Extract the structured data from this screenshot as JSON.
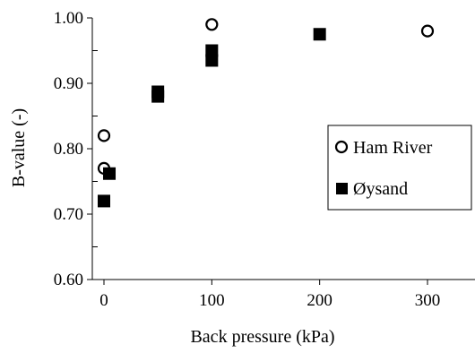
{
  "chart_data": {
    "type": "scatter",
    "title": "",
    "xlabel": "Back pressure (kPa)",
    "ylabel": "B-value (-)",
    "xlim": [
      0,
      350
    ],
    "ylim": [
      0.6,
      1.0
    ],
    "xticks": [
      0,
      100,
      200,
      300
    ],
    "xtick_labels": [
      "0",
      "100",
      "200",
      "300"
    ],
    "yticks": [
      0.6,
      0.7,
      0.8,
      0.9,
      1.0
    ],
    "ytick_labels": [
      "0.60",
      "0.70",
      "0.80",
      "0.90",
      "1.00"
    ],
    "grid": false,
    "legend_position": "right",
    "series": [
      {
        "name": "Ham River",
        "marker": "open-circle",
        "color": "#000000",
        "points": [
          {
            "x": 0,
            "y": 0.82
          },
          {
            "x": 0,
            "y": 0.77
          },
          {
            "x": 100,
            "y": 0.99
          },
          {
            "x": 300,
            "y": 0.98
          }
        ]
      },
      {
        "name": "Øysand",
        "marker": "filled-square",
        "color": "#000000",
        "points": [
          {
            "x": 0,
            "y": 0.72
          },
          {
            "x": 5,
            "y": 0.762
          },
          {
            "x": 50,
            "y": 0.887
          },
          {
            "x": 50,
            "y": 0.88
          },
          {
            "x": 100,
            "y": 0.95
          },
          {
            "x": 100,
            "y": 0.935
          },
          {
            "x": 200,
            "y": 0.975
          }
        ]
      }
    ]
  }
}
